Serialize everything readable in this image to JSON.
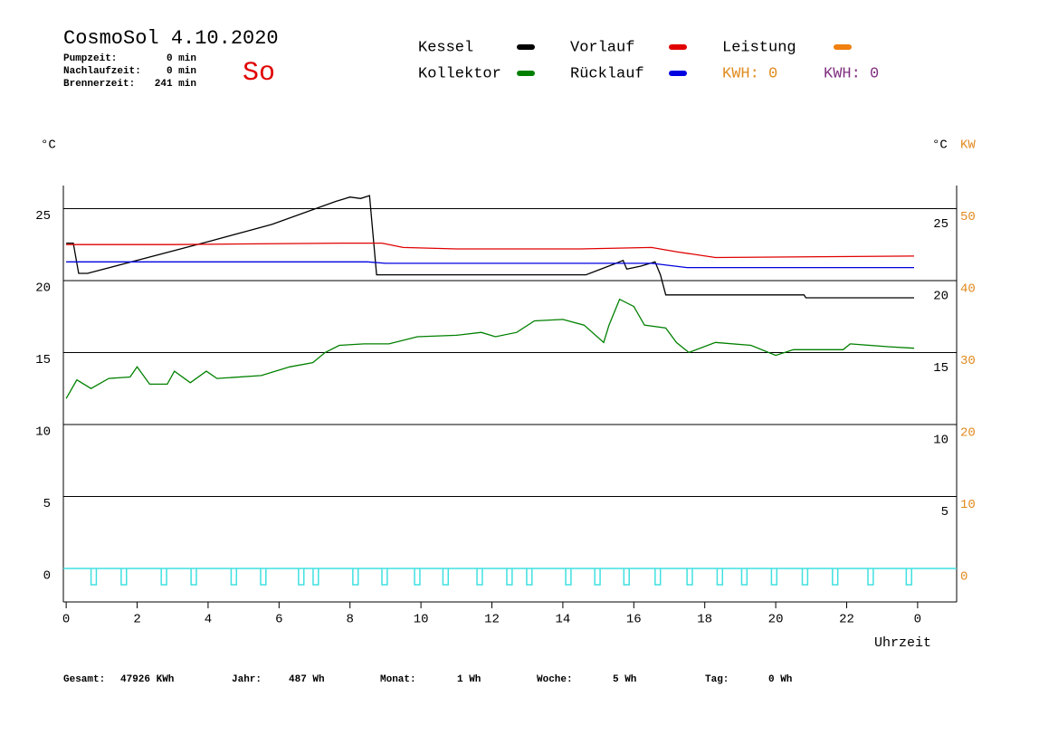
{
  "chart_data": {
    "type": "line",
    "title": "CosmoSol 4.10.2020",
    "day": "So",
    "stats": [
      {
        "label": "Pumpzeit:",
        "value": "0 min"
      },
      {
        "label": "Nachlaufzeit:",
        "value": "0 min"
      },
      {
        "label": "Brennerzeit:",
        "value": "241 min"
      }
    ],
    "y_unit": "°C",
    "y2_unit": "KW",
    "x_label": "Uhrzeit",
    "xlim": [
      -0.08,
      25.1
    ],
    "xticks": [
      0,
      2,
      4,
      6,
      8,
      10,
      12,
      14,
      16,
      18,
      20,
      22,
      {
        "value": 24,
        "label": "0"
      }
    ],
    "ylim": [
      -2.33,
      26.6
    ],
    "yticks": [
      0,
      5,
      10,
      15,
      20,
      25
    ],
    "y2lim": [
      -4.66,
      53.2
    ],
    "y2ticks": [
      0,
      10,
      20,
      30,
      40,
      50
    ],
    "y2color": "#e08a1e",
    "grid": true,
    "series": [
      {
        "name": "Kessel",
        "color": "#000000",
        "x": [
          0,
          0.2,
          0.35,
          0.6,
          4,
          5.8,
          7.6,
          8.0,
          8.3,
          8.55,
          8.75,
          14.65,
          15.5,
          15.7,
          15.8,
          16.2,
          16.6,
          16.75,
          16.9,
          20.8,
          20.85,
          23.9
        ],
        "values": [
          22.6,
          22.6,
          20.5,
          20.5,
          22.7,
          23.9,
          25.5,
          25.8,
          25.7,
          25.9,
          20.4,
          20.4,
          21.2,
          21.4,
          20.8,
          21.0,
          21.3,
          20.4,
          19.0,
          19.0,
          18.8,
          18.8
        ]
      },
      {
        "name": "Vorlauf",
        "color": "#e00000",
        "x": [
          0,
          3,
          7.8,
          8.9,
          9.5,
          11,
          14.5,
          16.5,
          17.2,
          18.3,
          23.9
        ],
        "values": [
          22.5,
          22.5,
          22.6,
          22.6,
          22.3,
          22.2,
          22.2,
          22.3,
          22.0,
          21.6,
          21.7
        ]
      },
      {
        "name": "Kollektor",
        "color": "#008000",
        "x": [
          0,
          0.3,
          0.7,
          1.2,
          1.8,
          2.0,
          2.35,
          2.85,
          3.05,
          3.5,
          3.95,
          4.25,
          5.5,
          6.3,
          6.95,
          7.3,
          7.7,
          8.4,
          9.1,
          9.9,
          11,
          11.7,
          12.1,
          12.7,
          13.2,
          14,
          14.6,
          15.15,
          15.3,
          15.6,
          16,
          16.3,
          16.9,
          17.2,
          17.55,
          18.3,
          19.3,
          20,
          20.5,
          21.9,
          22.1,
          23.2,
          23.9
        ],
        "values": [
          11.8,
          13.1,
          12.5,
          13.2,
          13.3,
          14.0,
          12.8,
          12.8,
          13.7,
          12.9,
          13.7,
          13.2,
          13.4,
          14.0,
          14.3,
          15.0,
          15.5,
          15.6,
          15.6,
          16.1,
          16.2,
          16.4,
          16.1,
          16.4,
          17.2,
          17.3,
          16.9,
          15.7,
          16.9,
          18.7,
          18.2,
          16.9,
          16.7,
          15.7,
          15.0,
          15.7,
          15.5,
          14.8,
          15.2,
          15.2,
          15.6,
          15.4,
          15.3
        ]
      },
      {
        "name": "Rücklauf",
        "color": "#0000e0",
        "x": [
          0,
          8.5,
          9,
          16.5,
          17.5,
          23.9
        ],
        "values": [
          21.3,
          21.3,
          21.2,
          21.2,
          20.9,
          20.9
        ]
      }
    ],
    "extra_legend": [
      {
        "name": "Leistung",
        "color": "#f08010"
      }
    ],
    "kwh": [
      {
        "label": "KWH: 0",
        "color": "#e08a1e"
      },
      {
        "label": "KWH: 0",
        "color": "#803080"
      }
    ],
    "pump_color": "#40e0e0",
    "pump_intervals": [
      [
        0.7,
        0.85
      ],
      [
        1.55,
        1.7
      ],
      [
        2.68,
        2.83
      ],
      [
        3.52,
        3.67
      ],
      [
        4.65,
        4.8
      ],
      [
        5.48,
        5.63
      ],
      [
        6.55,
        6.7
      ],
      [
        6.96,
        7.11
      ],
      [
        8.08,
        8.23
      ],
      [
        8.9,
        9.05
      ],
      [
        9.82,
        9.97
      ],
      [
        10.62,
        10.77
      ],
      [
        11.58,
        11.73
      ],
      [
        12.42,
        12.57
      ],
      [
        12.98,
        13.13
      ],
      [
        14.08,
        14.23
      ],
      [
        14.9,
        15.05
      ],
      [
        15.72,
        15.87
      ],
      [
        16.6,
        16.75
      ],
      [
        17.5,
        17.65
      ],
      [
        18.35,
        18.5
      ],
      [
        19.04,
        19.19
      ],
      [
        19.88,
        20.03
      ],
      [
        20.75,
        20.9
      ],
      [
        21.6,
        21.75
      ],
      [
        22.6,
        22.75
      ],
      [
        23.68,
        23.83
      ]
    ],
    "totals": [
      {
        "label": "Gesamt:",
        "value": "47926 KWh"
      },
      {
        "label": "Jahr:",
        "value": "487 Wh"
      },
      {
        "label": "Monat:",
        "value": "1 Wh"
      },
      {
        "label": "Woche:",
        "value": "5 Wh"
      },
      {
        "label": "Tag:",
        "value": "0 Wh"
      }
    ]
  }
}
